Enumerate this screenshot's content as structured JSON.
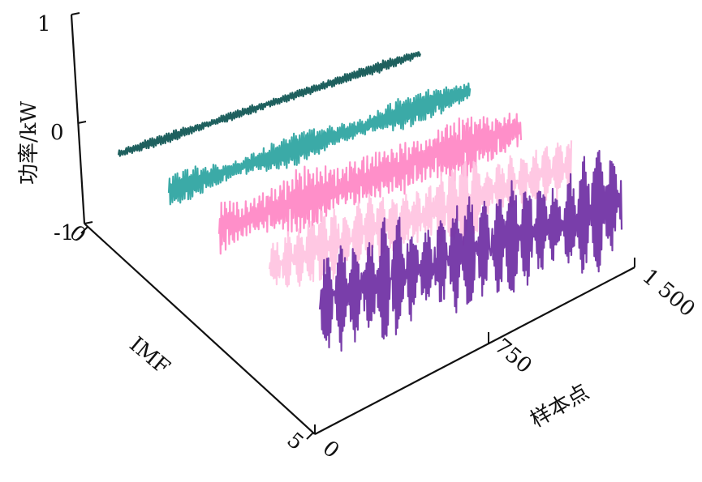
{
  "chart_data": {
    "type": "line",
    "projection": "3d-waterfall",
    "zlabel": "功率/kW",
    "ylabel": "IMF",
    "xlabel": "样本点",
    "z_ticks": [
      "1",
      "0",
      "-1"
    ],
    "y_ticks": [
      "0",
      "5"
    ],
    "x_ticks": [
      "0",
      "750",
      "1 500"
    ],
    "zlim": [
      -1,
      1
    ],
    "xlim": [
      0,
      1500
    ],
    "ylim": [
      0,
      5
    ],
    "series": [
      {
        "imf": 1,
        "color": "#0b5350",
        "amplitude": 0.06
      },
      {
        "imf": 2,
        "color": "#2aa3a0",
        "amplitude": 0.16
      },
      {
        "imf": 3,
        "color": "#ff86c4",
        "amplitude": 0.34
      },
      {
        "imf": 4,
        "color": "#ffc3e1",
        "amplitude": 0.42
      },
      {
        "imf": 5,
        "color": "#6e2ea3",
        "amplitude": 0.66
      }
    ]
  }
}
